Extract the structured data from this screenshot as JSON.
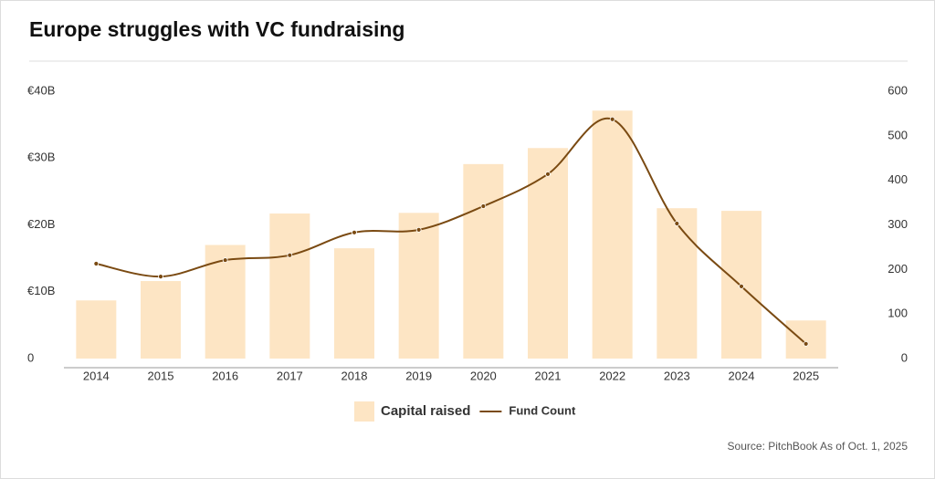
{
  "chart_data": {
    "type": "bar",
    "title": "Europe struggles with VC fundraising",
    "source": "Source: PitchBook As of Oct. 1, 2025",
    "categories": [
      "2014",
      "2015",
      "2016",
      "2017",
      "2018",
      "2019",
      "2020",
      "2021",
      "2022",
      "2023",
      "2024",
      "2025"
    ],
    "series": [
      {
        "name": "Capital raised",
        "type": "bar",
        "color": "#fde5c4",
        "values": [
          8.7,
          11.6,
          17.0,
          21.7,
          16.5,
          21.8,
          29.1,
          31.5,
          37.1,
          22.5,
          22.1,
          5.7
        ]
      },
      {
        "name": "Fund Count",
        "type": "line",
        "axis": "y2",
        "color": "#7a4a12",
        "values": [
          213,
          184,
          221,
          232,
          283,
          289,
          342,
          414,
          537,
          303,
          162,
          33
        ]
      }
    ],
    "ylim": [
      0,
      40
    ],
    "yticks": [
      0,
      {
        "value": 10,
        "label": "€10B"
      },
      {
        "value": 20,
        "label": "€20B"
      },
      {
        "value": 30,
        "label": "€30B"
      },
      {
        "value": 40,
        "label": "€40B"
      }
    ],
    "y2lim": [
      0,
      600
    ],
    "y2ticks": [
      0,
      100,
      200,
      300,
      400,
      500,
      600
    ],
    "grid": false
  }
}
